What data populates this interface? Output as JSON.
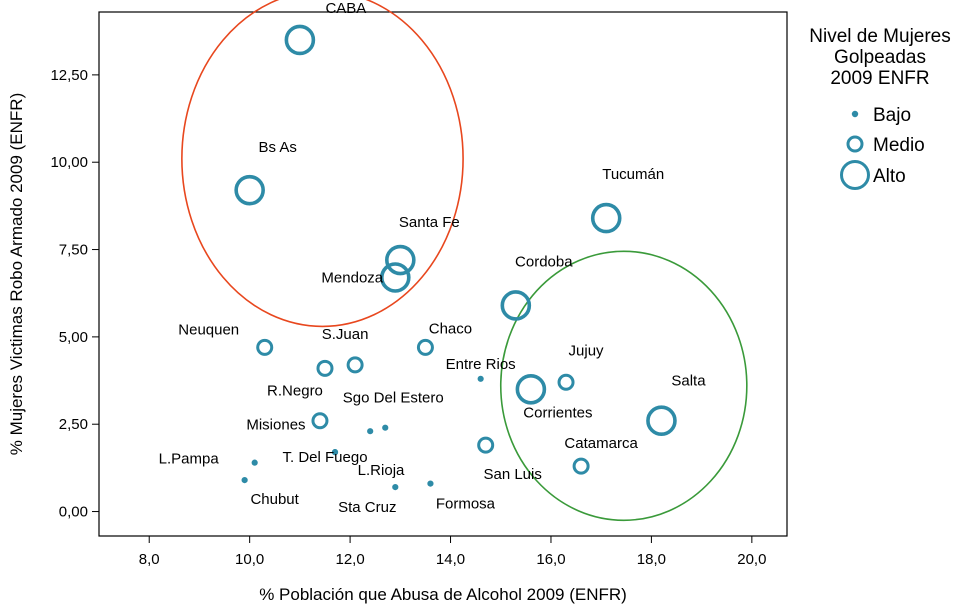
{
  "chart_data": {
    "type": "scatter",
    "xlabel": "% Población que Abusa de Alcohol 2009 (ENFR)",
    "ylabel": "% Mujeres Victimas Robo Armado 2009 (ENFR)",
    "xlim": [
      7.0,
      20.7
    ],
    "ylim": [
      -0.7,
      14.3
    ],
    "xticks": [
      "8,0",
      "10,0",
      "12,0",
      "14,0",
      "16,0",
      "18,0",
      "20,0"
    ],
    "xtick_values": [
      8,
      10,
      12,
      14,
      16,
      18,
      20
    ],
    "yticks": [
      "0,00",
      "2,50",
      "5,00",
      "7,50",
      "10,00",
      "12,50"
    ],
    "ytick_values": [
      0,
      2.5,
      5,
      7.5,
      10,
      12.5
    ],
    "grid": false,
    "legend": {
      "title": [
        "Nivel de Mujeres",
        "Golpeadas",
        "2009 ENFR"
      ],
      "placement": "right",
      "entries": [
        "Bajo",
        "Medio",
        "Alto"
      ]
    },
    "point_color": "#2e8ba7",
    "points": [
      {
        "label": "CABA",
        "x": 11.0,
        "y": 13.5,
        "size": "Alto"
      },
      {
        "label": "Bs As",
        "x": 10.0,
        "y": 9.2,
        "size": "Alto"
      },
      {
        "label": "Tucumán",
        "x": 17.1,
        "y": 8.4,
        "size": "Alto"
      },
      {
        "label": "Santa Fe",
        "x": 13.0,
        "y": 7.2,
        "size": "Alto"
      },
      {
        "label": "Mendoza",
        "x": 12.9,
        "y": 6.7,
        "size": "Alto"
      },
      {
        "label": "Cordoba",
        "x": 15.3,
        "y": 5.9,
        "size": "Alto"
      },
      {
        "label": "Neuquen",
        "x": 10.3,
        "y": 4.7,
        "size": "Medio"
      },
      {
        "label": "S.Juan",
        "x": 12.1,
        "y": 4.2,
        "size": "Medio"
      },
      {
        "label": "Chaco",
        "x": 13.5,
        "y": 4.7,
        "size": "Medio"
      },
      {
        "label": "R.Negro",
        "x": 11.5,
        "y": 4.1,
        "size": "Medio"
      },
      {
        "label": "Entre Rios",
        "x": 14.6,
        "y": 3.8,
        "size": "Bajo"
      },
      {
        "label": "Jujuy",
        "x": 16.3,
        "y": 3.7,
        "size": "Medio"
      },
      {
        "label": "Corrientes",
        "x": 15.6,
        "y": 3.5,
        "size": "Alto"
      },
      {
        "label": "Salta",
        "x": 18.2,
        "y": 2.6,
        "size": "Alto"
      },
      {
        "label": "Misiones",
        "x": 11.4,
        "y": 2.6,
        "size": "Medio"
      },
      {
        "label": "Sgo Del Estero",
        "x": 12.7,
        "y": 2.4,
        "size": "Bajo"
      },
      {
        "label": "",
        "x": 12.4,
        "y": 2.3,
        "size": "Bajo"
      },
      {
        "label": "L.Rioja",
        "x": 11.7,
        "y": 1.7,
        "size": "Bajo"
      },
      {
        "label": "San Luis",
        "x": 14.7,
        "y": 1.9,
        "size": "Medio"
      },
      {
        "label": "Catamarca",
        "x": 16.6,
        "y": 1.3,
        "size": "Medio"
      },
      {
        "label": "L.Pampa",
        "x": 10.1,
        "y": 1.4,
        "size": "Bajo"
      },
      {
        "label": "T. Del Fuego",
        "x": 11.7,
        "y": 1.7,
        "size": "Bajo"
      },
      {
        "label": "Chubut",
        "x": 9.9,
        "y": 0.9,
        "size": "Bajo"
      },
      {
        "label": "Sta Cruz",
        "x": 12.9,
        "y": 0.7,
        "size": "Bajo"
      },
      {
        "label": "Formosa",
        "x": 13.6,
        "y": 0.8,
        "size": "Bajo"
      }
    ],
    "annotations": [
      {
        "shape": "ellipse",
        "color": "#e8471e",
        "cx": 11.45,
        "cy": 10.1,
        "rx": 2.8,
        "ry": 4.8
      },
      {
        "shape": "ellipse",
        "color": "#3a9a3a",
        "cx": 17.45,
        "cy": 3.6,
        "rx": 2.45,
        "ry": 3.85
      }
    ]
  }
}
